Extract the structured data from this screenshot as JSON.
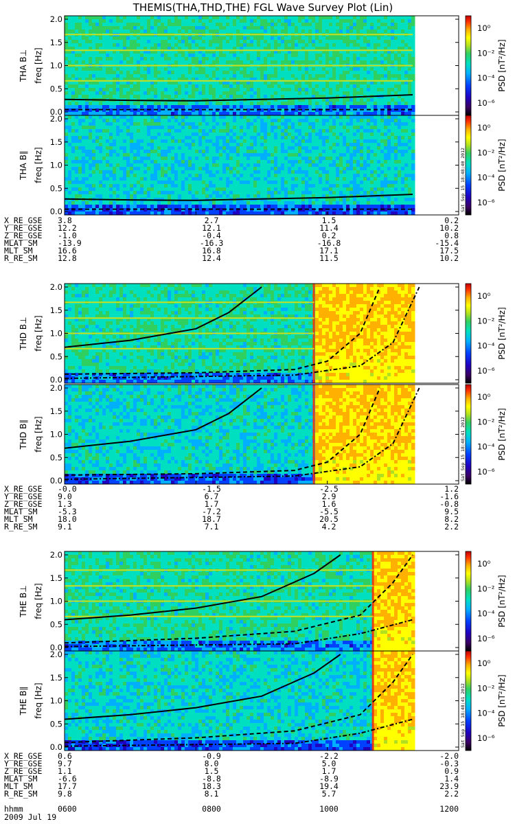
{
  "title": "THEMIS(THA,THD,THE) FGL Wave Survey Plot (Lin)",
  "colorbar": {
    "label": "PSD [nT²/Hz]",
    "ticks": [
      {
        "exp": 0,
        "text": "10⁰"
      },
      {
        "exp": -2,
        "text": "10⁻²"
      },
      {
        "exp": -4,
        "text": "10⁻⁴"
      },
      {
        "exp": -6,
        "text": "10⁻⁶"
      }
    ],
    "colors": [
      "#000000",
      "#3a0060",
      "#2000c0",
      "#0040ff",
      "#00b0ff",
      "#00e0c0",
      "#30d060",
      "#b0e020",
      "#ffff00",
      "#ffb000",
      "#ff3000",
      "#c00000"
    ]
  },
  "freq_axis": {
    "label": "freq [Hz]",
    "ticks": [
      "0.0",
      "0.5",
      "1.0",
      "1.5",
      "2.0"
    ],
    "ylim": [
      0,
      2.0
    ]
  },
  "stamps": [
    "Sat Sep 15 18:48:40 2012",
    "Sat Sep 15 18:48:41 2012",
    "Sat Sep 15 18:48:41 2012"
  ],
  "groups": [
    {
      "panels": [
        {
          "name": "THA B⊥"
        },
        {
          "name": "THA B∥"
        }
      ],
      "ephemeris": [
        {
          "label": "X_RE_GSE",
          "values": [
            "3.8",
            "2.7",
            "1.5",
            "0.2"
          ]
        },
        {
          "label": "Y_RE_GSE",
          "values": [
            "12.2",
            "12.1",
            "11.4",
            "10.2"
          ]
        },
        {
          "label": "Z_RE_GSE",
          "values": [
            "-1.0",
            "-0.4",
            "0.2",
            "0.8"
          ]
        },
        {
          "label": "MLAT_SM",
          "values": [
            "-13.9",
            "-16.3",
            "-16.8",
            "-15.4"
          ]
        },
        {
          "label": "MLT_SM",
          "values": [
            "16.6",
            "16.8",
            "17.1",
            "17.5"
          ]
        },
        {
          "label": "R_RE_SM",
          "values": [
            "12.8",
            "12.4",
            "11.5",
            "10.2"
          ]
        }
      ]
    },
    {
      "panels": [
        {
          "name": "THD B⊥"
        },
        {
          "name": "THD B∥"
        }
      ],
      "ephemeris": [
        {
          "label": "X_RE_GSE",
          "values": [
            "-0.0",
            "-1.5",
            "-2.5",
            "1.2"
          ]
        },
        {
          "label": "Y_RE_GSE",
          "values": [
            "9.0",
            "6.7",
            "2.9",
            "-1.6"
          ]
        },
        {
          "label": "Z_RE_GSE",
          "values": [
            "1.3",
            "1.7",
            "1.6",
            "-0.8"
          ]
        },
        {
          "label": "MLAT_SM",
          "values": [
            "-5.3",
            "-7.2",
            "-5.5",
            "9.5"
          ]
        },
        {
          "label": "MLT_SM",
          "values": [
            "18.0",
            "18.7",
            "20.5",
            "8.2"
          ]
        },
        {
          "label": "R_RE_SM",
          "values": [
            "9.1",
            "7.1",
            "4.2",
            "2.2"
          ]
        }
      ]
    },
    {
      "panels": [
        {
          "name": "THE B⊥"
        },
        {
          "name": "THE B∥"
        }
      ],
      "ephemeris": [
        {
          "label": "X_RE_GSE",
          "values": [
            "0.6",
            "-0.9",
            "-2.2",
            "-2.0"
          ]
        },
        {
          "label": "Y_RE_GSE",
          "values": [
            "9.7",
            "8.0",
            "5.0",
            "-0.3"
          ]
        },
        {
          "label": "Z_RE_GSE",
          "values": [
            "1.1",
            "1.5",
            "1.7",
            "0.9"
          ]
        },
        {
          "label": "MLAT_SM",
          "values": [
            "-6.6",
            "-8.8",
            "-8.9",
            "1.4"
          ]
        },
        {
          "label": "MLT_SM",
          "values": [
            "17.7",
            "18.3",
            "19.4",
            "23.9"
          ]
        },
        {
          "label": "R_RE_SM",
          "values": [
            "9.8",
            "8.1",
            "5.7",
            "2.2"
          ]
        }
      ]
    }
  ],
  "time_axis": {
    "label": "hhmm",
    "values": [
      "0600",
      "0800",
      "1000",
      "1200"
    ],
    "date": "2009 Jul 19"
  },
  "chart_data": [
    {
      "type": "heatmap",
      "panel": "THA B⊥",
      "ylim": [
        0,
        2.0
      ],
      "ylabel": "freq [Hz]",
      "zlabel": "PSD [nT²/Hz]",
      "zlim_log10": [
        -7,
        1
      ],
      "x_hours": [
        6,
        8,
        10,
        12
      ],
      "data_end_hour": 11.3,
      "horizontal_lines_hz": [
        0.67,
        1.0,
        1.33,
        1.67
      ],
      "solid_curve_hz": [
        [
          6,
          0.27
        ],
        [
          7,
          0.25
        ],
        [
          8,
          0.24
        ],
        [
          9,
          0.27
        ],
        [
          10,
          0.3
        ],
        [
          11.3,
          0.37
        ]
      ],
      "dashed_curve_hz": [
        [
          6,
          0.05
        ],
        [
          11.3,
          0.05
        ]
      ]
    },
    {
      "type": "heatmap",
      "panel": "THA B∥",
      "ylim": [
        0,
        2.0
      ],
      "ylabel": "freq [Hz]",
      "zlabel": "PSD [nT²/Hz]",
      "zlim_log10": [
        -7,
        1
      ],
      "x_hours": [
        6,
        8,
        10,
        12
      ],
      "data_end_hour": 11.3,
      "solid_curve_hz": [
        [
          6,
          0.27
        ],
        [
          7,
          0.25
        ],
        [
          8,
          0.24
        ],
        [
          9,
          0.27
        ],
        [
          10,
          0.3
        ],
        [
          11.3,
          0.37
        ]
      ],
      "dashed_curve_hz": [
        [
          6,
          0.05
        ],
        [
          11.3,
          0.05
        ]
      ]
    },
    {
      "type": "heatmap",
      "panel": "THD B⊥",
      "ylim": [
        0,
        2.0
      ],
      "ylabel": "freq [Hz]",
      "zlabel": "PSD [nT²/Hz]",
      "zlim_log10": [
        -7,
        1
      ],
      "x_hours": [
        6,
        8,
        10,
        12
      ],
      "data_end_hour": 11.3,
      "enhancement_start_hour": 9.8,
      "horizontal_lines_hz": [
        0.67,
        1.0,
        1.33,
        1.67
      ],
      "solid_curve_hz": [
        [
          6,
          0.7
        ],
        [
          7,
          0.85
        ],
        [
          8,
          1.1
        ],
        [
          8.5,
          1.45
        ],
        [
          9,
          2.0
        ]
      ],
      "dashed_curve_hz": [
        [
          6,
          0.12
        ],
        [
          8,
          0.15
        ],
        [
          9.5,
          0.22
        ],
        [
          10,
          0.4
        ],
        [
          10.5,
          1.0
        ],
        [
          10.8,
          2.0
        ]
      ],
      "dashdot_curve_hz": [
        [
          6,
          0.03
        ],
        [
          9.5,
          0.1
        ],
        [
          10.5,
          0.3
        ],
        [
          11,
          0.8
        ],
        [
          11.4,
          2.0
        ]
      ]
    },
    {
      "type": "heatmap",
      "panel": "THD B∥",
      "ylim": [
        0,
        2.0
      ],
      "ylabel": "freq [Hz]",
      "zlabel": "PSD [nT²/Hz]",
      "zlim_log10": [
        -7,
        1
      ],
      "x_hours": [
        6,
        8,
        10,
        12
      ],
      "data_end_hour": 11.3,
      "enhancement_start_hour": 9.8,
      "solid_curve_hz": [
        [
          6,
          0.7
        ],
        [
          7,
          0.85
        ],
        [
          8,
          1.1
        ],
        [
          8.5,
          1.45
        ],
        [
          9,
          2.0
        ]
      ],
      "dashed_curve_hz": [
        [
          6,
          0.12
        ],
        [
          8,
          0.15
        ],
        [
          9.5,
          0.22
        ],
        [
          10,
          0.4
        ],
        [
          10.5,
          1.0
        ],
        [
          10.8,
          2.0
        ]
      ],
      "dashdot_curve_hz": [
        [
          6,
          0.03
        ],
        [
          9.5,
          0.1
        ],
        [
          10.5,
          0.3
        ],
        [
          11,
          0.8
        ],
        [
          11.4,
          2.0
        ]
      ]
    },
    {
      "type": "heatmap",
      "panel": "THE B⊥",
      "ylim": [
        0,
        2.0
      ],
      "ylabel": "freq [Hz]",
      "zlabel": "PSD [nT²/Hz]",
      "zlim_log10": [
        -7,
        1
      ],
      "x_hours": [
        6,
        8,
        10,
        12
      ],
      "data_end_hour": 11.3,
      "enhancement_start_hour": 10.7,
      "horizontal_lines_hz": [
        0.67,
        1.0,
        1.33,
        1.67
      ],
      "solid_curve_hz": [
        [
          6,
          0.6
        ],
        [
          7,
          0.7
        ],
        [
          8,
          0.85
        ],
        [
          9,
          1.1
        ],
        [
          9.8,
          1.6
        ],
        [
          10.2,
          2.0
        ]
      ],
      "dashed_curve_hz": [
        [
          6,
          0.1
        ],
        [
          8,
          0.2
        ],
        [
          9.5,
          0.35
        ],
        [
          10.5,
          0.7
        ],
        [
          11,
          1.4
        ],
        [
          11.3,
          2.0
        ]
      ],
      "dashdot_curve_hz": [
        [
          6,
          0.02
        ],
        [
          9.5,
          0.08
        ],
        [
          10.5,
          0.3
        ],
        [
          11.3,
          0.6
        ]
      ]
    },
    {
      "type": "heatmap",
      "panel": "THE B∥",
      "ylim": [
        0,
        2.0
      ],
      "ylabel": "freq [Hz]",
      "zlabel": "PSD [nT²/Hz]",
      "zlim_log10": [
        -7,
        1
      ],
      "x_hours": [
        6,
        8,
        10,
        12
      ],
      "data_end_hour": 11.3,
      "enhancement_start_hour": 10.7,
      "solid_curve_hz": [
        [
          6,
          0.6
        ],
        [
          7,
          0.7
        ],
        [
          8,
          0.85
        ],
        [
          9,
          1.1
        ],
        [
          9.8,
          1.6
        ],
        [
          10.2,
          2.0
        ]
      ],
      "dashed_curve_hz": [
        [
          6,
          0.1
        ],
        [
          8,
          0.2
        ],
        [
          9.5,
          0.35
        ],
        [
          10.5,
          0.7
        ],
        [
          11,
          1.4
        ],
        [
          11.3,
          2.0
        ]
      ],
      "dashdot_curve_hz": [
        [
          6,
          0.02
        ],
        [
          9.5,
          0.08
        ],
        [
          10.5,
          0.3
        ],
        [
          11.3,
          0.6
        ]
      ]
    }
  ]
}
